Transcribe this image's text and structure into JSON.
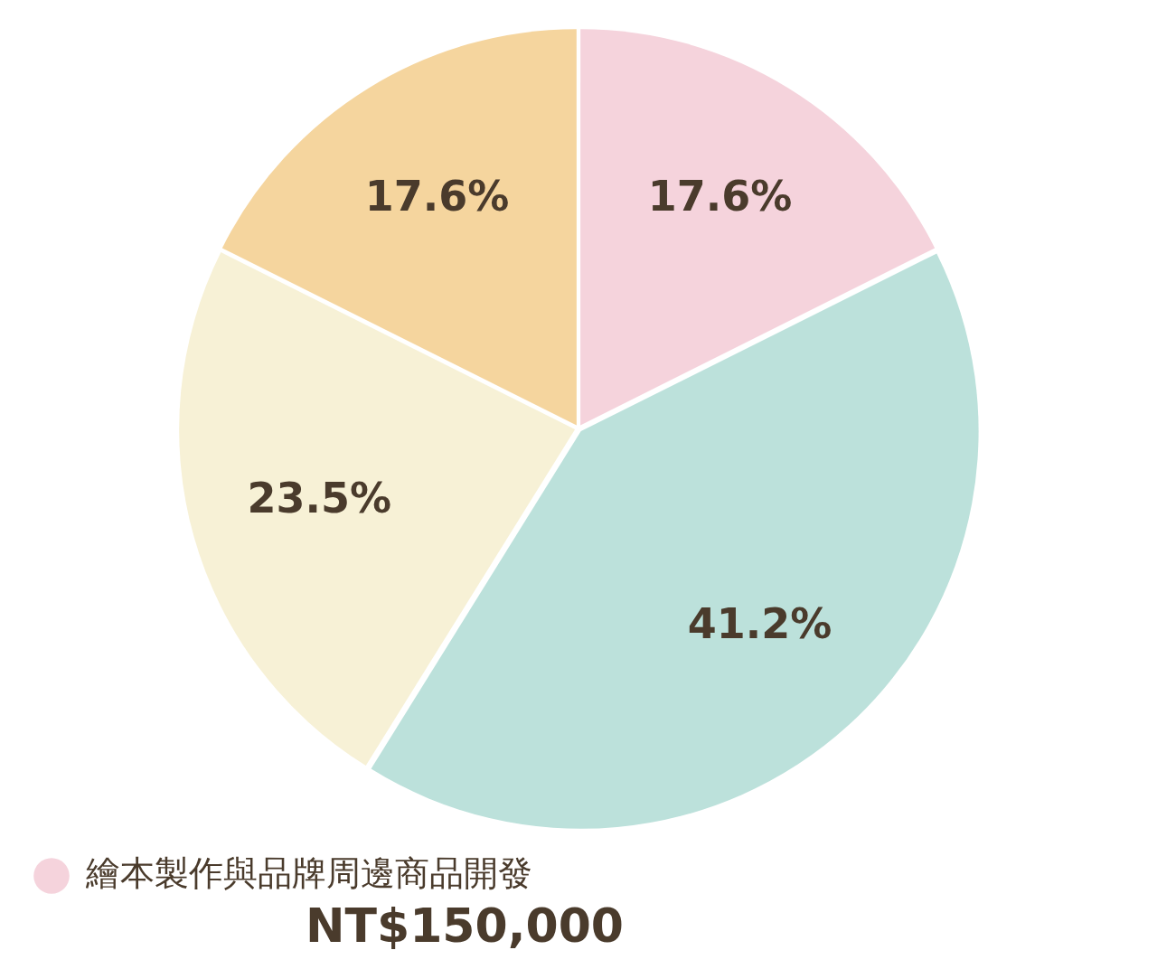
{
  "chart_data": {
    "type": "pie",
    "categories": [
      "繪本製作與品牌周邊商品開發",
      null,
      null,
      null
    ],
    "values": [
      17.6,
      41.2,
      23.5,
      17.6
    ],
    "colors": [
      "#f5d3dc",
      "#bce1db",
      "#f7f1d6",
      "#f5d59e"
    ],
    "value_labels": [
      "17.6%",
      "41.2%",
      "23.5%",
      "17.6%"
    ],
    "legend": "bottom",
    "annotations": [
      "NT$150,000"
    ]
  }
}
